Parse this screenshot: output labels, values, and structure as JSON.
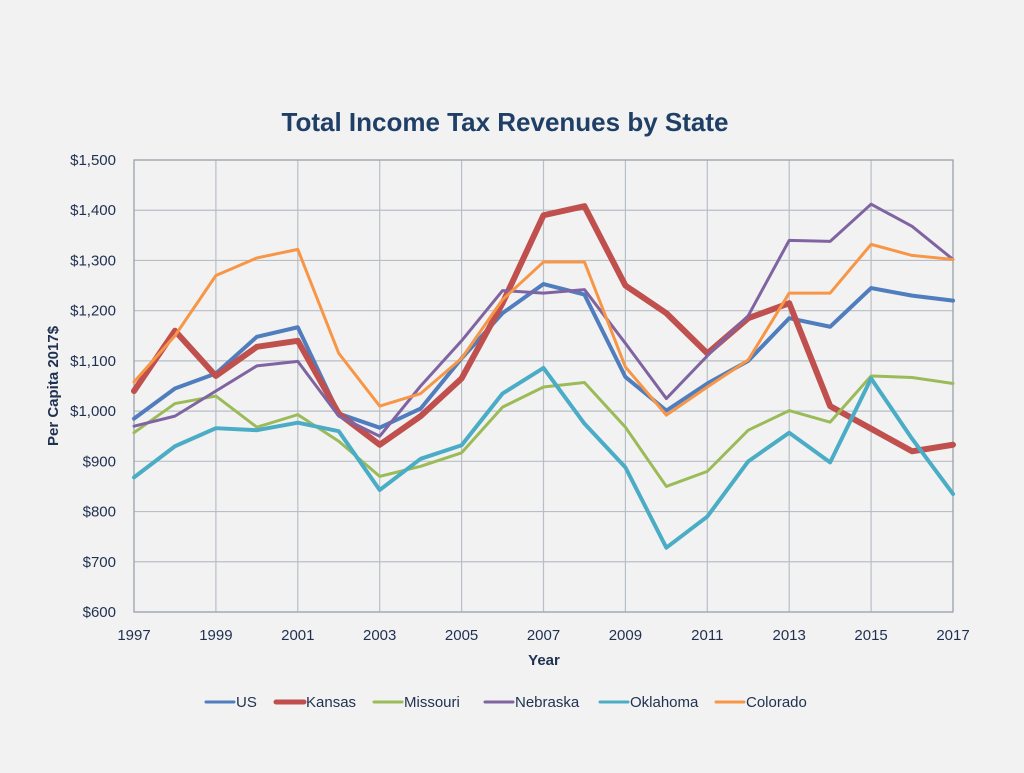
{
  "chart_data": {
    "type": "line",
    "title": "Total Income Tax Revenues by State",
    "xlabel": "Year",
    "ylabel": "Per Capita 2017$",
    "xlim": [
      1997,
      2017
    ],
    "ylim": [
      600,
      1500
    ],
    "y_step": 100,
    "x_ticks": [
      1997,
      1999,
      2001,
      2003,
      2005,
      2007,
      2009,
      2011,
      2013,
      2015,
      2017
    ],
    "y_tick_labels": [
      "$600",
      "$700",
      "$800",
      "$900",
      "$1,000",
      "$1,100",
      "$1,200",
      "$1,300",
      "$1,400",
      "$1,500"
    ],
    "grid": true,
    "legend_position": "bottom",
    "x": [
      1997,
      1998,
      1999,
      2000,
      2001,
      2002,
      2003,
      2004,
      2005,
      2006,
      2007,
      2008,
      2009,
      2010,
      2011,
      2012,
      2013,
      2014,
      2015,
      2016,
      2017
    ],
    "series": [
      {
        "name": "US",
        "color": "#4f7dbd",
        "width": 4,
        "values": [
          985,
          1045,
          1075,
          1148,
          1167,
          995,
          967,
          1005,
          1105,
          1195,
          1253,
          1232,
          1068,
          1001,
          1055,
          1100,
          1185,
          1168,
          1245,
          1230,
          1220
        ]
      },
      {
        "name": "Kansas",
        "color": "#c0504d",
        "width": 6,
        "values": [
          1040,
          1160,
          1070,
          1128,
          1140,
          995,
          933,
          990,
          1065,
          1215,
          1390,
          1408,
          1250,
          1195,
          1115,
          1185,
          1215,
          1010,
          965,
          920,
          933
        ]
      },
      {
        "name": "Missouri",
        "color": "#9bbb59",
        "width": 3,
        "values": [
          957,
          1015,
          1030,
          968,
          993,
          940,
          870,
          890,
          917,
          1008,
          1048,
          1057,
          968,
          850,
          880,
          962,
          1001,
          978,
          1070,
          1067,
          1055
        ]
      },
      {
        "name": "Nebraska",
        "color": "#8064a2",
        "width": 3,
        "values": [
          970,
          990,
          1040,
          1090,
          1099,
          990,
          950,
          1050,
          1140,
          1240,
          1235,
          1242,
          1135,
          1025,
          1110,
          1190,
          1340,
          1338,
          1412,
          1368,
          1302
        ]
      },
      {
        "name": "Oklahoma",
        "color": "#4bacc6",
        "width": 4,
        "values": [
          868,
          930,
          966,
          962,
          977,
          960,
          843,
          905,
          932,
          1035,
          1086,
          975,
          888,
          728,
          790,
          900,
          957,
          898,
          1065,
          945,
          835
        ]
      },
      {
        "name": "Colorado",
        "color": "#f79646",
        "width": 3,
        "values": [
          1058,
          1150,
          1270,
          1305,
          1322,
          1115,
          1010,
          1035,
          1105,
          1222,
          1297,
          1297,
          1088,
          992,
          1048,
          1102,
          1235,
          1235,
          1332,
          1310,
          1302
        ]
      }
    ]
  }
}
